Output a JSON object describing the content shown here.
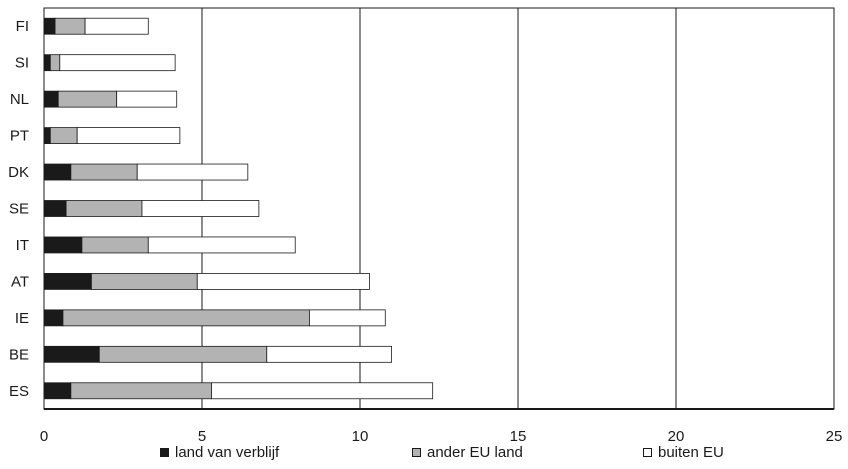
{
  "chart_data": {
    "type": "bar",
    "orientation": "horizontal",
    "stacked": true,
    "categories": [
      "FI",
      "SI",
      "NL",
      "PT",
      "DK",
      "SE",
      "IT",
      "AT",
      "IE",
      "BE",
      "ES"
    ],
    "series": [
      {
        "name": "land van verblijf",
        "color": "#1a1a1a",
        "values": [
          0.35,
          0.2,
          0.45,
          0.2,
          0.85,
          0.7,
          1.2,
          1.5,
          0.6,
          1.75,
          0.85
        ]
      },
      {
        "name": "ander EU land",
        "color": "#b3b3b3",
        "values": [
          0.95,
          0.3,
          1.85,
          0.85,
          2.1,
          2.4,
          2.1,
          3.35,
          7.8,
          5.3,
          4.45
        ]
      },
      {
        "name": "buiten EU",
        "color": "#ffffff",
        "values": [
          2.0,
          3.65,
          1.9,
          3.25,
          3.5,
          3.7,
          4.65,
          5.45,
          2.4,
          3.95,
          7.0
        ]
      }
    ],
    "xlim": [
      0,
      25
    ],
    "xticks": [
      0,
      5,
      10,
      15,
      20,
      25
    ],
    "xlabel": "",
    "ylabel": "",
    "title": "",
    "grid": "vertical",
    "legend_position": "bottom"
  }
}
